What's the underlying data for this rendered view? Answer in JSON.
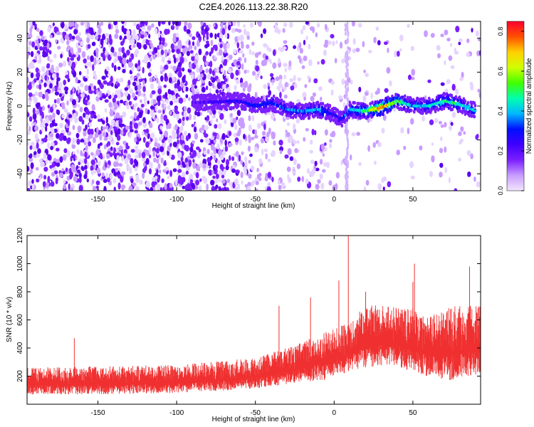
{
  "figure": {
    "title": "C2E4.2026.113.22.38.R20"
  },
  "chart_data": [
    {
      "type": "heatmap",
      "title": "C2E4.2026.113.22.38.R20",
      "xlabel": "Height of straight line (km)",
      "ylabel": "Frequency (Hz)",
      "xlim": [
        -195,
        93
      ],
      "ylim": [
        -50,
        50
      ],
      "x_ticks": [
        -150,
        -100,
        -50,
        0,
        50
      ],
      "y_ticks": [
        -40,
        -20,
        0,
        20,
        40
      ],
      "colorbar": {
        "label": "Normalized spectral amplitude",
        "range": [
          0.0,
          0.85
        ],
        "ticks": [
          "0.0",
          "0.2",
          "0.4",
          "0.6",
          "0.8"
        ],
        "colormap": [
          "#f2e6ff",
          "#c99cff",
          "#7a1fff",
          "#3f00ff",
          "#0010ff",
          "#00b8ff",
          "#00ffb0",
          "#40ff00",
          "#d0ff00",
          "#ffd000",
          "#ff5000",
          "#ff0030"
        ]
      },
      "ridge": {
        "x": [
          -90,
          -60,
          -50,
          -40,
          -30,
          -20,
          -10,
          0,
          5,
          10,
          20,
          30,
          40,
          50,
          60,
          70,
          80,
          90
        ],
        "frequency": [
          2,
          3,
          0,
          2,
          -2,
          -3,
          -2,
          -5,
          -8,
          -2,
          -3,
          -1,
          3,
          0,
          0,
          3,
          1,
          -3
        ],
        "peak_amplitude": [
          0.2,
          0.3,
          0.35,
          0.35,
          0.4,
          0.4,
          0.45,
          0.3,
          0.3,
          0.45,
          0.55,
          0.85,
          0.6,
          0.45,
          0.45,
          0.55,
          0.5,
          0.45
        ]
      },
      "grid": false
    },
    {
      "type": "line",
      "xlabel": "Height of straight line (km)",
      "ylabel": "SNR (10 * v/v)",
      "xlim": [
        -195,
        93
      ],
      "ylim": [
        0,
        1200
      ],
      "x_ticks": [
        -150,
        -100,
        -50,
        0,
        50
      ],
      "y_ticks": [
        200,
        400,
        600,
        800,
        1000,
        1200
      ],
      "color": "#f03030",
      "envelope": {
        "x": [
          -195,
          -150,
          -100,
          -50,
          -25,
          0,
          10,
          20,
          35,
          50,
          60,
          75,
          93
        ],
        "low": [
          70,
          70,
          80,
          110,
          150,
          180,
          240,
          260,
          280,
          230,
          190,
          170,
          220
        ],
        "high": [
          260,
          270,
          280,
          330,
          420,
          540,
          580,
          720,
          700,
          680,
          620,
          700,
          700
        ]
      },
      "spikes": [
        {
          "x": -165,
          "y": 470
        },
        {
          "x": -35,
          "y": 700
        },
        {
          "x": -15,
          "y": 760
        },
        {
          "x": 3,
          "y": 880
        },
        {
          "x": 9,
          "y": 1200
        },
        {
          "x": 20,
          "y": 800
        },
        {
          "x": 50,
          "y": 870
        },
        {
          "x": 51,
          "y": 1000
        },
        {
          "x": 86,
          "y": 980
        }
      ],
      "grid": false
    }
  ]
}
